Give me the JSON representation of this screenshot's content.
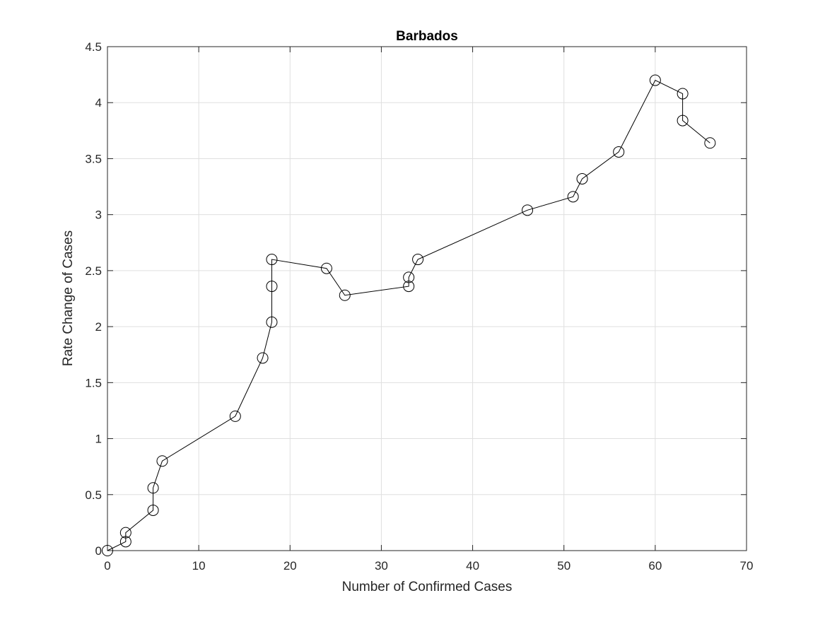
{
  "chart_data": {
    "type": "line",
    "title": "Barbados",
    "xlabel": "Number of Confirmed Cases",
    "ylabel": "Rate Change of Cases",
    "xlim": [
      0,
      70
    ],
    "ylim": [
      0,
      4.5
    ],
    "xticks": [
      0,
      10,
      20,
      30,
      40,
      50,
      60,
      70
    ],
    "yticks": [
      0,
      0.5,
      1,
      1.5,
      2,
      2.5,
      3,
      3.5,
      4,
      4.5
    ],
    "xtick_labels": [
      "0",
      "10",
      "20",
      "30",
      "40",
      "50",
      "60",
      "70"
    ],
    "ytick_labels": [
      "0",
      "0.5",
      "1",
      "1.5",
      "2",
      "2.5",
      "3",
      "3.5",
      "4",
      "4.5"
    ],
    "grid": true,
    "marker": "circle",
    "line_color": "#000000",
    "grid_color": "#dfdfdf",
    "series": [
      {
        "x": [
          0,
          2,
          2,
          5,
          5,
          6,
          14,
          17,
          18,
          18,
          18,
          24,
          26,
          33,
          33,
          34,
          46,
          51,
          52,
          56,
          60,
          63,
          63,
          66
        ],
        "y": [
          0,
          0.08,
          0.16,
          0.36,
          0.56,
          0.8,
          1.2,
          1.72,
          2.04,
          2.36,
          2.6,
          2.52,
          2.28,
          2.36,
          2.44,
          2.6,
          3.04,
          3.16,
          3.32,
          3.56,
          4.2,
          4.08,
          3.84,
          3.64
        ]
      }
    ]
  }
}
